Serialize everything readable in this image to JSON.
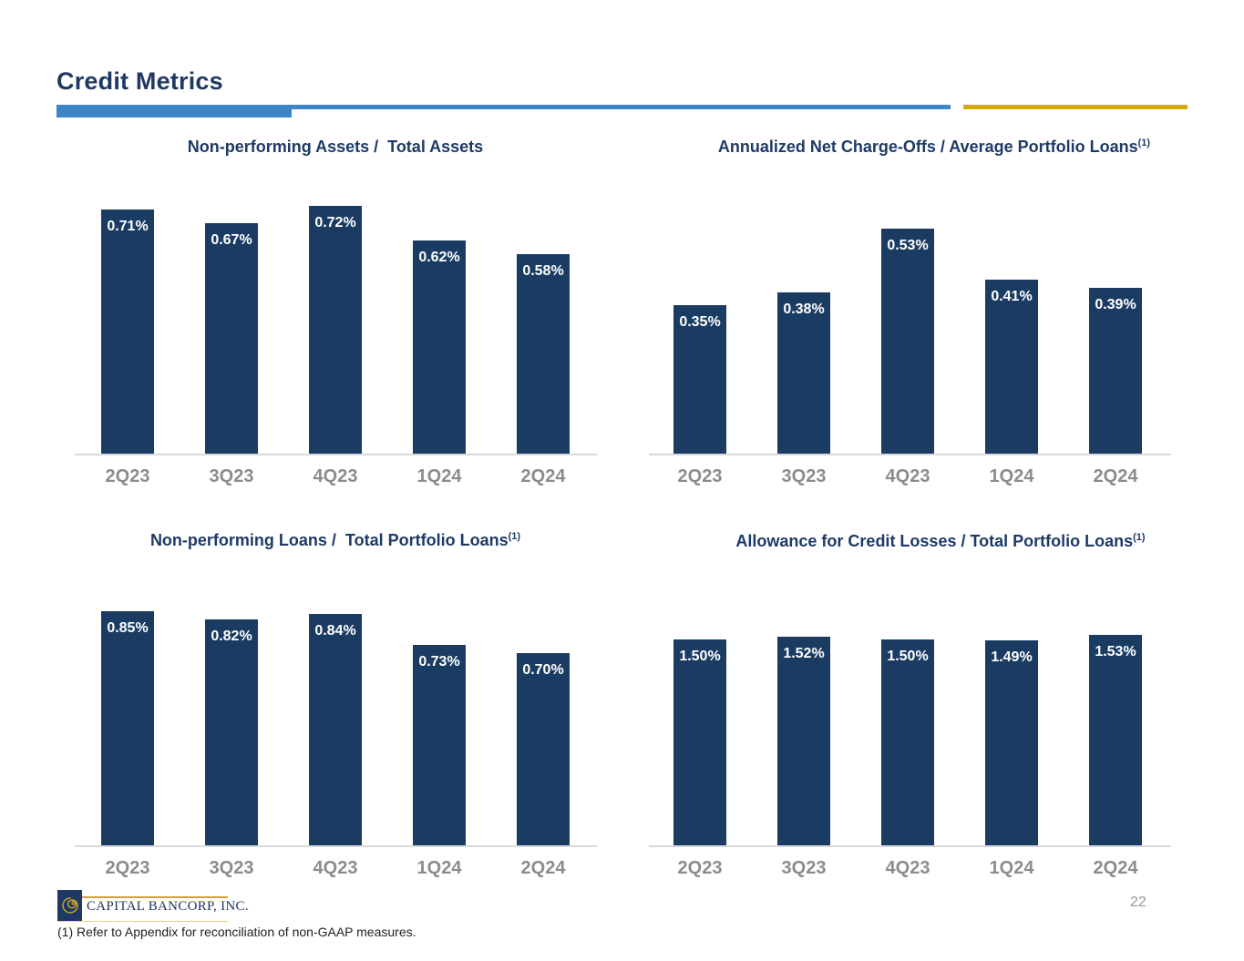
{
  "slide": {
    "title": "Credit Metrics",
    "page_number": "22",
    "footnote": "(1) Refer to Appendix for reconciliation of non-GAAP measures.",
    "logo_text": "CAPITAL BANCORP, INC."
  },
  "colors": {
    "bar_navy": "#1a3c63",
    "title_navy": "#1f3864",
    "accent_blue": "#3d85c6",
    "accent_gold": "#d4a812",
    "axis_gray": "#d9d9d9",
    "xlabel_gray": "#8c8c8c",
    "bar_value_text": "#ffffff"
  },
  "chart_data": [
    {
      "type": "bar",
      "title": "Non-performing Assets /  Total Assets",
      "title_sup": "",
      "categories": [
        "2Q23",
        "3Q23",
        "4Q23",
        "1Q24",
        "2Q24"
      ],
      "values": [
        0.71,
        0.67,
        0.72,
        0.62,
        0.58
      ],
      "labels": [
        "0.71%",
        "0.67%",
        "0.72%",
        "0.62%",
        "0.58%"
      ],
      "ylabel": "",
      "xlabel": "",
      "ylim": [
        0,
        0.815
      ],
      "grid": false,
      "legend": "none"
    },
    {
      "type": "bar",
      "title": "Annualized Net Charge-Offs / Average Portfolio Loans",
      "title_sup": "(1)",
      "categories": [
        "2Q23",
        "3Q23",
        "4Q23",
        "1Q24",
        "2Q24"
      ],
      "values": [
        0.35,
        0.38,
        0.53,
        0.41,
        0.39
      ],
      "labels": [
        "0.35%",
        "0.38%",
        "0.53%",
        "0.41%",
        "0.39%"
      ],
      "ylabel": "",
      "xlabel": "",
      "ylim": [
        0,
        0.66
      ],
      "grid": false,
      "legend": "none"
    },
    {
      "type": "bar",
      "title": "Non-performing Loans /  Total Portfolio Loans",
      "title_sup": "(1)",
      "categories": [
        "2Q23",
        "3Q23",
        "4Q23",
        "1Q24",
        "2Q24"
      ],
      "values": [
        0.85,
        0.82,
        0.84,
        0.73,
        0.7
      ],
      "labels": [
        "0.85%",
        "0.82%",
        "0.84%",
        "0.73%",
        "0.70%"
      ],
      "ylabel": "",
      "xlabel": "",
      "ylim": [
        0,
        1.02
      ],
      "grid": false,
      "legend": "none"
    },
    {
      "type": "bar",
      "title": "Allowance for Credit Losses / Total Portfolio Loans",
      "title_sup": "(1)",
      "categories": [
        "2Q23",
        "3Q23",
        "4Q23",
        "1Q24",
        "2Q24"
      ],
      "values": [
        1.5,
        1.52,
        1.5,
        1.49,
        1.53
      ],
      "labels": [
        "1.50%",
        "1.52%",
        "1.50%",
        "1.49%",
        "1.53%"
      ],
      "ylabel": "",
      "xlabel": "",
      "ylim": [
        0,
        2.04
      ],
      "grid": false,
      "legend": "none"
    }
  ]
}
